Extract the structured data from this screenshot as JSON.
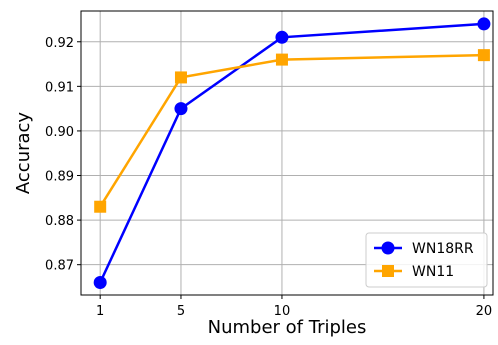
{
  "chart_data": {
    "type": "line",
    "x": [
      1,
      5,
      10,
      20
    ],
    "xticks": [
      "1",
      "5",
      "10",
      "20"
    ],
    "xlim": [
      0.05,
      20.45
    ],
    "ylim": [
      0.8632,
      0.9269
    ],
    "yticks": [
      0.87,
      0.88,
      0.89,
      0.9,
      0.91,
      0.92
    ],
    "ytick_labels": [
      "0.87",
      "0.88",
      "0.89",
      "0.90",
      "0.91",
      "0.92"
    ],
    "xlabel": "Number of Triples",
    "ylabel": "Accuracy",
    "grid": true,
    "legend_position": "bottom-right",
    "series": [
      {
        "name": "WN18RR",
        "values": [
          0.866,
          0.905,
          0.921,
          0.924
        ],
        "color": "#0000ff",
        "marker": "circle"
      },
      {
        "name": "WN11",
        "values": [
          0.883,
          0.912,
          0.916,
          0.917
        ],
        "color": "#ffa500",
        "marker": "square"
      }
    ]
  }
}
